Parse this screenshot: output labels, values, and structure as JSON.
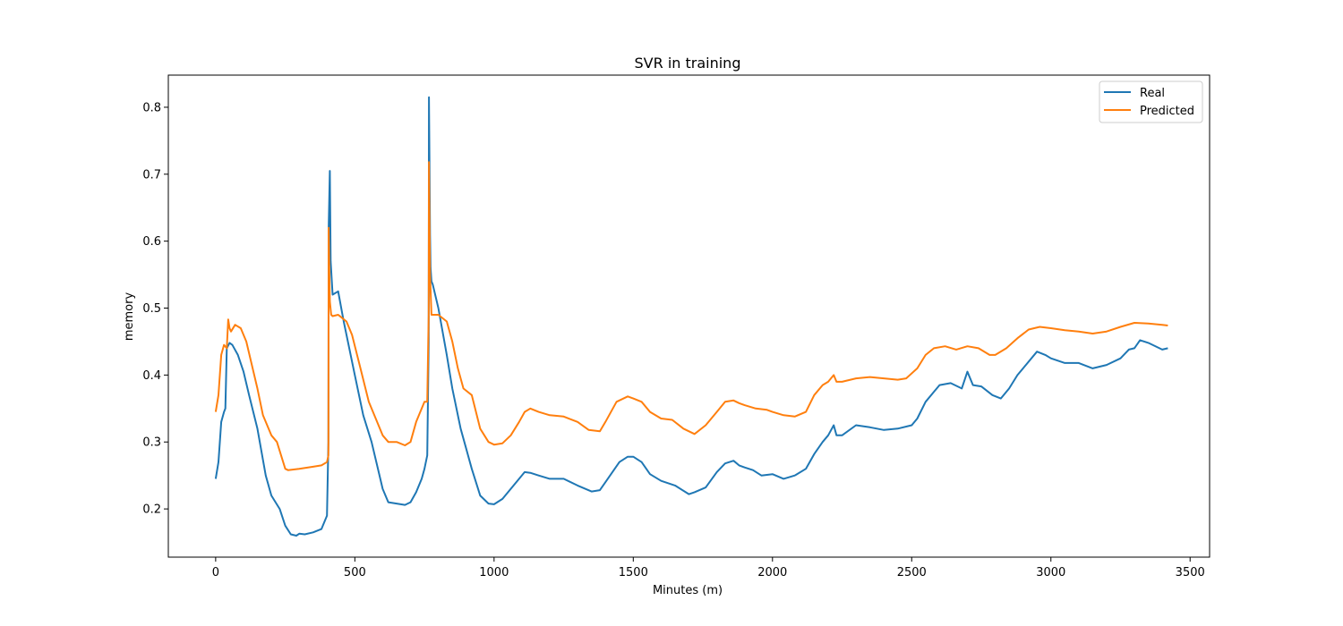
{
  "chart_data": {
    "type": "line",
    "title": "SVR in training",
    "xlabel": "Minutes (m)",
    "ylabel": "memory",
    "xlim": [
      -170,
      3570
    ],
    "ylim": [
      0.128,
      0.848
    ],
    "xticks": [
      0,
      500,
      1000,
      1500,
      2000,
      2500,
      3000,
      3500
    ],
    "yticks": [
      0.2,
      0.3,
      0.4,
      0.5,
      0.6,
      0.7,
      0.8
    ],
    "grid": false,
    "legend_position": "top-right",
    "series": [
      {
        "name": "Real",
        "color": "#1f77b4",
        "x": [
          0,
          10,
          20,
          30,
          35,
          40,
          50,
          60,
          80,
          100,
          120,
          150,
          180,
          200,
          230,
          250,
          270,
          290,
          300,
          320,
          350,
          380,
          400,
          405,
          406,
          410,
          413,
          420,
          440,
          460,
          480,
          500,
          530,
          560,
          580,
          600,
          620,
          650,
          680,
          700,
          720,
          740,
          750,
          760,
          765,
          766,
          770,
          772,
          775,
          780,
          800,
          830,
          850,
          880,
          900,
          920,
          950,
          980,
          1000,
          1030,
          1060,
          1090,
          1110,
          1130,
          1160,
          1200,
          1250,
          1300,
          1350,
          1380,
          1400,
          1450,
          1480,
          1500,
          1530,
          1560,
          1600,
          1650,
          1700,
          1720,
          1760,
          1800,
          1830,
          1860,
          1880,
          1900,
          1930,
          1960,
          2000,
          2040,
          2080,
          2120,
          2150,
          2180,
          2200,
          2220,
          2230,
          2250,
          2300,
          2350,
          2400,
          2450,
          2500,
          2520,
          2550,
          2580,
          2600,
          2640,
          2680,
          2700,
          2720,
          2750,
          2790,
          2820,
          2850,
          2880,
          2910,
          2950,
          2980,
          3000,
          3050,
          3100,
          3150,
          3200,
          3250,
          3280,
          3300,
          3320,
          3350,
          3380,
          3400,
          3420
        ],
        "values": [
          0.245,
          0.27,
          0.33,
          0.345,
          0.35,
          0.44,
          0.448,
          0.445,
          0.43,
          0.405,
          0.37,
          0.32,
          0.25,
          0.22,
          0.2,
          0.175,
          0.162,
          0.16,
          0.163,
          0.162,
          0.165,
          0.17,
          0.19,
          0.3,
          0.62,
          0.705,
          0.57,
          0.52,
          0.525,
          0.48,
          0.44,
          0.4,
          0.34,
          0.3,
          0.265,
          0.23,
          0.21,
          0.208,
          0.206,
          0.21,
          0.225,
          0.245,
          0.26,
          0.28,
          0.45,
          0.815,
          0.61,
          0.56,
          0.54,
          0.535,
          0.5,
          0.43,
          0.38,
          0.32,
          0.29,
          0.26,
          0.22,
          0.208,
          0.207,
          0.215,
          0.23,
          0.245,
          0.255,
          0.254,
          0.25,
          0.245,
          0.245,
          0.235,
          0.226,
          0.228,
          0.24,
          0.27,
          0.278,
          0.278,
          0.27,
          0.252,
          0.242,
          0.235,
          0.222,
          0.225,
          0.232,
          0.255,
          0.268,
          0.272,
          0.265,
          0.262,
          0.258,
          0.25,
          0.252,
          0.245,
          0.25,
          0.26,
          0.282,
          0.3,
          0.31,
          0.325,
          0.31,
          0.31,
          0.325,
          0.322,
          0.318,
          0.32,
          0.325,
          0.335,
          0.36,
          0.375,
          0.385,
          0.388,
          0.38,
          0.405,
          0.385,
          0.383,
          0.37,
          0.365,
          0.38,
          0.4,
          0.415,
          0.435,
          0.43,
          0.425,
          0.418,
          0.418,
          0.41,
          0.415,
          0.425,
          0.438,
          0.44,
          0.452,
          0.448,
          0.442,
          0.438,
          0.44
        ]
      },
      {
        "name": "Predicted",
        "color": "#ff7f0e",
        "x": [
          0,
          10,
          20,
          30,
          40,
          45,
          50,
          55,
          70,
          90,
          110,
          130,
          150,
          170,
          200,
          220,
          250,
          260,
          300,
          350,
          380,
          400,
          405,
          406,
          410,
          415,
          420,
          440,
          470,
          490,
          520,
          550,
          580,
          600,
          620,
          650,
          680,
          700,
          720,
          750,
          760,
          765,
          766,
          770,
          775,
          780,
          800,
          830,
          850,
          870,
          890,
          920,
          950,
          980,
          1000,
          1030,
          1060,
          1090,
          1110,
          1130,
          1160,
          1200,
          1250,
          1300,
          1340,
          1380,
          1400,
          1440,
          1480,
          1500,
          1530,
          1560,
          1600,
          1640,
          1680,
          1720,
          1760,
          1800,
          1830,
          1860,
          1880,
          1900,
          1940,
          1980,
          2000,
          2040,
          2080,
          2120,
          2150,
          2180,
          2200,
          2220,
          2230,
          2250,
          2300,
          2350,
          2400,
          2450,
          2480,
          2520,
          2550,
          2580,
          2620,
          2660,
          2700,
          2740,
          2780,
          2800,
          2840,
          2880,
          2920,
          2960,
          3000,
          3050,
          3100,
          3150,
          3200,
          3250,
          3300,
          3350,
          3400,
          3420
        ],
        "values": [
          0.345,
          0.37,
          0.43,
          0.445,
          0.44,
          0.483,
          0.47,
          0.465,
          0.475,
          0.47,
          0.45,
          0.415,
          0.38,
          0.34,
          0.31,
          0.3,
          0.26,
          0.258,
          0.26,
          0.263,
          0.265,
          0.27,
          0.28,
          0.62,
          0.51,
          0.49,
          0.488,
          0.49,
          0.48,
          0.46,
          0.41,
          0.36,
          0.33,
          0.31,
          0.3,
          0.3,
          0.295,
          0.3,
          0.33,
          0.36,
          0.36,
          0.49,
          0.718,
          0.55,
          0.49,
          0.49,
          0.49,
          0.48,
          0.45,
          0.41,
          0.38,
          0.37,
          0.32,
          0.3,
          0.296,
          0.298,
          0.31,
          0.33,
          0.345,
          0.35,
          0.345,
          0.34,
          0.338,
          0.33,
          0.318,
          0.316,
          0.33,
          0.36,
          0.368,
          0.365,
          0.36,
          0.345,
          0.335,
          0.333,
          0.32,
          0.312,
          0.325,
          0.345,
          0.36,
          0.362,
          0.358,
          0.355,
          0.35,
          0.348,
          0.345,
          0.34,
          0.338,
          0.345,
          0.37,
          0.385,
          0.39,
          0.4,
          0.39,
          0.39,
          0.395,
          0.397,
          0.395,
          0.393,
          0.395,
          0.41,
          0.43,
          0.44,
          0.443,
          0.438,
          0.443,
          0.44,
          0.43,
          0.43,
          0.44,
          0.455,
          0.468,
          0.472,
          0.47,
          0.467,
          0.465,
          0.462,
          0.465,
          0.472,
          0.478,
          0.477,
          0.475,
          0.474
        ]
      }
    ]
  }
}
